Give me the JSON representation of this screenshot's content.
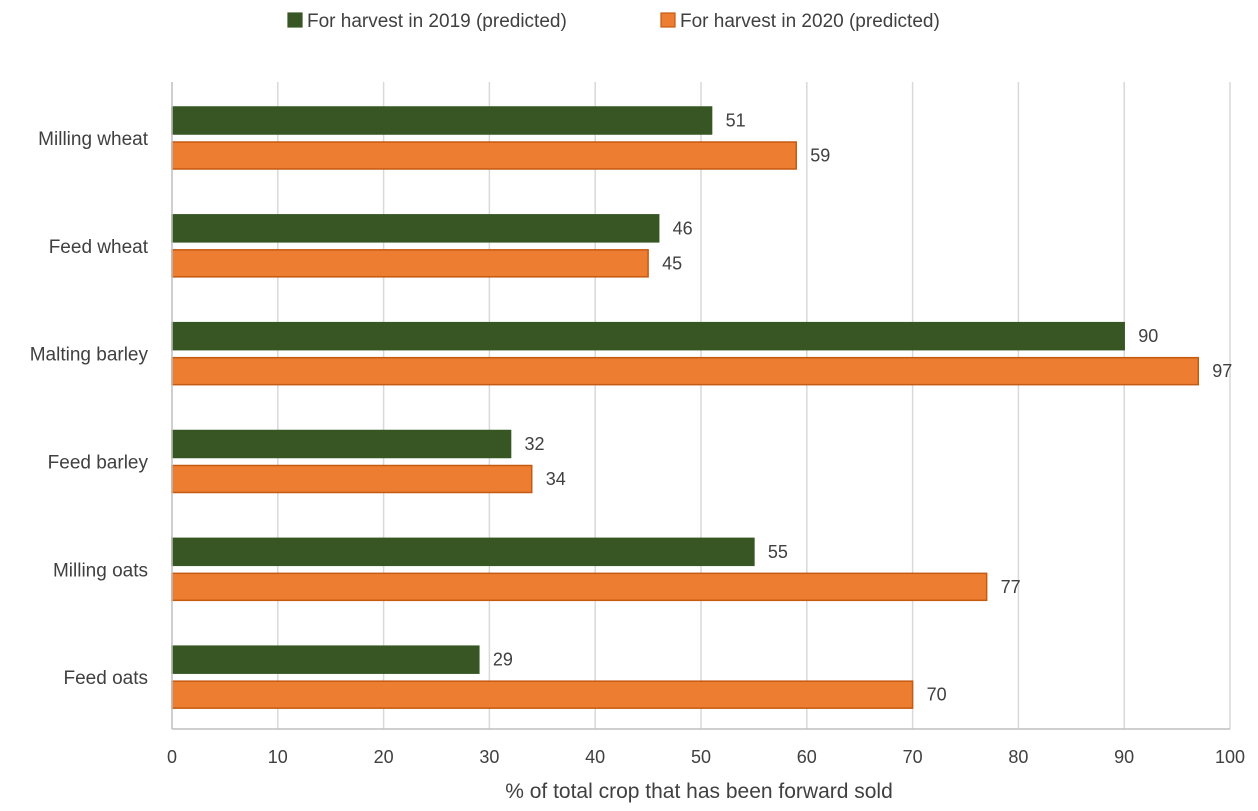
{
  "chart_data": {
    "type": "bar",
    "orientation": "horizontal",
    "title": "",
    "xlabel": "% of total crop that has been forward sold",
    "ylabel": "",
    "xlim": [
      0,
      100
    ],
    "x_ticks": [
      0,
      10,
      20,
      30,
      40,
      50,
      60,
      70,
      80,
      90,
      100
    ],
    "grid": true,
    "legend_position": "top",
    "categories": [
      "Milling wheat",
      "Feed wheat",
      "Malting barley",
      "Feed barley",
      "Milling oats",
      "Feed oats"
    ],
    "series": [
      {
        "name": "For harvest in 2019 (predicted)",
        "values": [
          51,
          46,
          90,
          32,
          55,
          29
        ],
        "fill": "#375623",
        "stroke": "#375623"
      },
      {
        "name": "For harvest in 2020 (predicted)",
        "values": [
          59,
          45,
          97,
          34,
          77,
          70
        ],
        "fill": "#ED7D31",
        "stroke": "#C55A11"
      }
    ]
  }
}
